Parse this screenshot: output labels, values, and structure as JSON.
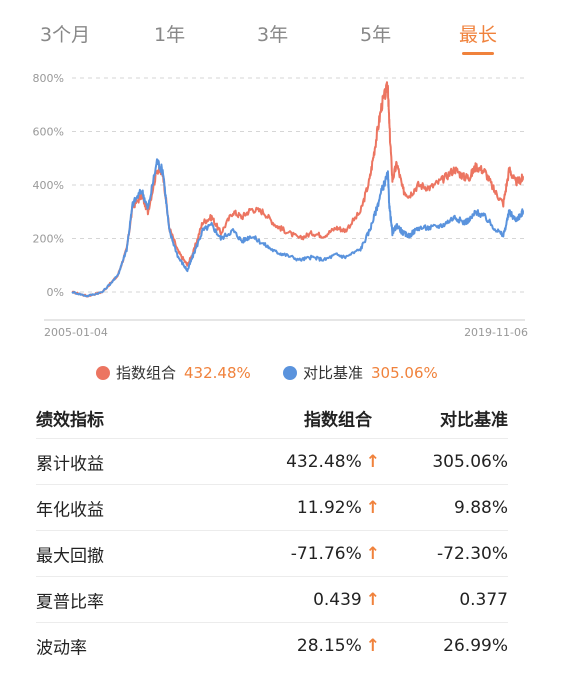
{
  "tabs": [
    "3个月",
    "1年",
    "3年",
    "5年",
    "最长"
  ],
  "active_tab": "最长",
  "colors": {
    "accent": "#f0823c",
    "portfolio": "#ec7561",
    "benchmark": "#5a93dd"
  },
  "chart_data": {
    "type": "line",
    "y_ticks": [
      "800%",
      "600%",
      "400%",
      "200%",
      "0%"
    ],
    "ylim": [
      -50,
      800
    ],
    "x_start_label": "2005-01-04",
    "x_end_label": "2019-11-06",
    "series": [
      {
        "name": "指数组合",
        "color": "#ec7561",
        "x": [
          2005.0,
          2005.5,
          2006.0,
          2006.5,
          2006.8,
          2007.0,
          2007.3,
          2007.5,
          2007.8,
          2008.0,
          2008.2,
          2008.5,
          2008.8,
          2009.0,
          2009.3,
          2009.6,
          2009.9,
          2010.3,
          2010.6,
          2010.9,
          2011.3,
          2011.7,
          2012.0,
          2012.5,
          2012.9,
          2013.3,
          2013.7,
          2014.0,
          2014.5,
          2014.8,
          2015.0,
          2015.2,
          2015.4,
          2015.45,
          2015.55,
          2015.7,
          2015.9,
          2016.1,
          2016.4,
          2016.8,
          2017.2,
          2017.6,
          2017.9,
          2018.1,
          2018.3,
          2018.6,
          2018.9,
          2019.2,
          2019.4,
          2019.6,
          2019.8,
          2019.85
        ],
        "values": [
          0,
          -15,
          0,
          60,
          160,
          320,
          360,
          300,
          460,
          440,
          240,
          150,
          100,
          150,
          260,
          280,
          220,
          300,
          280,
          310,
          300,
          250,
          230,
          200,
          220,
          210,
          240,
          230,
          300,
          420,
          560,
          700,
          770,
          620,
          420,
          480,
          380,
          360,
          400,
          390,
          420,
          460,
          430,
          430,
          470,
          450,
          380,
          330,
          460,
          410,
          420,
          432.48
        ]
      },
      {
        "name": "对比基准",
        "color": "#5a93dd",
        "x": [
          2005.0,
          2005.5,
          2006.0,
          2006.5,
          2006.8,
          2007.0,
          2007.3,
          2007.5,
          2007.8,
          2008.0,
          2008.2,
          2008.5,
          2008.8,
          2009.0,
          2009.3,
          2009.6,
          2009.9,
          2010.3,
          2010.6,
          2010.9,
          2011.3,
          2011.7,
          2012.0,
          2012.5,
          2012.9,
          2013.3,
          2013.7,
          2014.0,
          2014.5,
          2014.8,
          2015.0,
          2015.2,
          2015.4,
          2015.45,
          2015.55,
          2015.7,
          2015.9,
          2016.1,
          2016.4,
          2016.8,
          2017.2,
          2017.6,
          2017.9,
          2018.1,
          2018.3,
          2018.6,
          2018.9,
          2019.2,
          2019.4,
          2019.6,
          2019.8,
          2019.85
        ],
        "values": [
          0,
          -15,
          0,
          60,
          160,
          330,
          380,
          310,
          490,
          450,
          230,
          130,
          80,
          140,
          230,
          250,
          200,
          230,
          190,
          210,
          180,
          150,
          140,
          120,
          130,
          120,
          140,
          130,
          160,
          230,
          300,
          380,
          440,
          320,
          220,
          250,
          220,
          210,
          240,
          240,
          250,
          280,
          260,
          270,
          300,
          280,
          240,
          210,
          300,
          270,
          290,
          305.06
        ]
      }
    ]
  },
  "legend": [
    {
      "name": "指数组合",
      "value": "432.48%",
      "color": "#ec7561"
    },
    {
      "name": "对比基准",
      "value": "305.06%",
      "color": "#5a93dd"
    }
  ],
  "table": {
    "headers": [
      "绩效指标",
      "指数组合",
      "对比基准"
    ],
    "rows": [
      {
        "label": "累计收益",
        "portfolio": "432.48%",
        "arrow": "↑",
        "benchmark": "305.06%"
      },
      {
        "label": "年化收益",
        "portfolio": "11.92%",
        "arrow": "↑",
        "benchmark": "9.88%"
      },
      {
        "label": "最大回撤",
        "portfolio": "-71.76%",
        "arrow": "↑",
        "benchmark": "-72.30%"
      },
      {
        "label": "夏普比率",
        "portfolio": "0.439",
        "arrow": "↑",
        "benchmark": "0.377"
      },
      {
        "label": "波动率",
        "portfolio": "28.15%",
        "arrow": "↑",
        "benchmark": "26.99%"
      }
    ]
  }
}
